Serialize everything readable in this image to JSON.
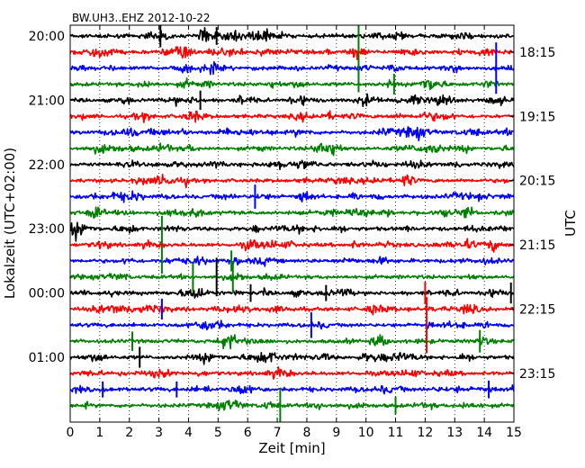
{
  "chart_data": {
    "type": "line",
    "title": "BW.UH3..EHZ 2012-10-22",
    "xlabel": "Zeit  [min]",
    "ylabel_left": "Lokalzeit (UTC+02:00)",
    "ylabel_right": "UTC",
    "xlim": [
      0,
      15
    ],
    "x_ticks": [
      "0",
      "1",
      "2",
      "3",
      "4",
      "5",
      "6",
      "7",
      "8",
      "9",
      "10",
      "11",
      "12",
      "13",
      "14",
      "15"
    ],
    "grid": "vertical dotted at each minute",
    "trace_interval_minutes": 15,
    "trace_count": 24,
    "trace_colors": [
      "#000000",
      "#ff0000",
      "#0000ff",
      "#008000"
    ],
    "left_ticks": [
      {
        "label": "20:00",
        "trace_index": 0
      },
      {
        "label": "21:00",
        "trace_index": 4
      },
      {
        "label": "22:00",
        "trace_index": 8
      },
      {
        "label": "23:00",
        "trace_index": 12
      },
      {
        "label": "00:00",
        "trace_index": 16
      },
      {
        "label": "01:00",
        "trace_index": 20
      }
    ],
    "right_ticks": [
      {
        "label": "18:15",
        "trace_index": 1
      },
      {
        "label": "19:15",
        "trace_index": 5
      },
      {
        "label": "20:15",
        "trace_index": 9
      },
      {
        "label": "21:15",
        "trace_index": 13
      },
      {
        "label": "22:15",
        "trace_index": 17
      },
      {
        "label": "23:15",
        "trace_index": 21
      }
    ],
    "events": [
      {
        "trace": 0,
        "minute": 3.05,
        "amplitude": 1.4,
        "color": "#000000"
      },
      {
        "trace": 0,
        "minute": 4.95,
        "amplitude": 1.1,
        "color": "#000000"
      },
      {
        "trace": 0,
        "minute": 9.75,
        "amplitude": 7.0,
        "color": "#008000"
      },
      {
        "trace": 2,
        "minute": 14.4,
        "amplitude": 3.2,
        "color": "#0000ff"
      },
      {
        "trace": 3,
        "minute": 10.95,
        "amplitude": 1.3,
        "color": "#008000"
      },
      {
        "trace": 4,
        "minute": 4.4,
        "amplitude": 1.2,
        "color": "#000000"
      },
      {
        "trace": 10,
        "minute": 6.25,
        "amplitude": 1.5,
        "color": "#0000ff"
      },
      {
        "trace": 13,
        "minute": 3.1,
        "amplitude": 3.6,
        "color": "#008000"
      },
      {
        "trace": 14,
        "minute": 5.45,
        "amplitude": 1.3,
        "color": "#008000"
      },
      {
        "trace": 15,
        "minute": 4.15,
        "amplitude": 1.8,
        "color": "#008000"
      },
      {
        "trace": 15,
        "minute": 4.95,
        "amplitude": 2.4,
        "color": "#000000"
      },
      {
        "trace": 15,
        "minute": 5.5,
        "amplitude": 2.0,
        "color": "#008000"
      },
      {
        "trace": 16,
        "minute": 6.1,
        "amplitude": 1.1,
        "color": "#000000"
      },
      {
        "trace": 16,
        "minute": 8.65,
        "amplitude": 1.0,
        "color": "#000000"
      },
      {
        "trace": 16,
        "minute": 12.0,
        "amplitude": 1.4,
        "color": "#ff0000"
      },
      {
        "trace": 16,
        "minute": 14.9,
        "amplitude": 1.3,
        "color": "#000000"
      },
      {
        "trace": 17,
        "minute": 3.1,
        "amplitude": 1.3,
        "color": "#0000ff"
      },
      {
        "trace": 18,
        "minute": 8.15,
        "amplitude": 1.6,
        "color": "#0000ff"
      },
      {
        "trace": 18,
        "minute": 12.05,
        "amplitude": 3.5,
        "color": "#ff0000"
      },
      {
        "trace": 19,
        "minute": 2.1,
        "amplitude": 1.2,
        "color": "#008000"
      },
      {
        "trace": 19,
        "minute": 13.85,
        "amplitude": 1.4,
        "color": "#008000"
      },
      {
        "trace": 20,
        "minute": 2.35,
        "amplitude": 1.3,
        "color": "#000000"
      },
      {
        "trace": 22,
        "minute": 1.1,
        "amplitude": 1.0,
        "color": "#0000ff"
      },
      {
        "trace": 22,
        "minute": 3.6,
        "amplitude": 1.0,
        "color": "#0000ff"
      },
      {
        "trace": 22,
        "minute": 14.15,
        "amplitude": 1.1,
        "color": "#0000ff"
      },
      {
        "trace": 23,
        "minute": 7.1,
        "amplitude": 2.2,
        "color": "#008000"
      },
      {
        "trace": 23,
        "minute": 11.0,
        "amplitude": 1.1,
        "color": "#008000"
      }
    ]
  }
}
